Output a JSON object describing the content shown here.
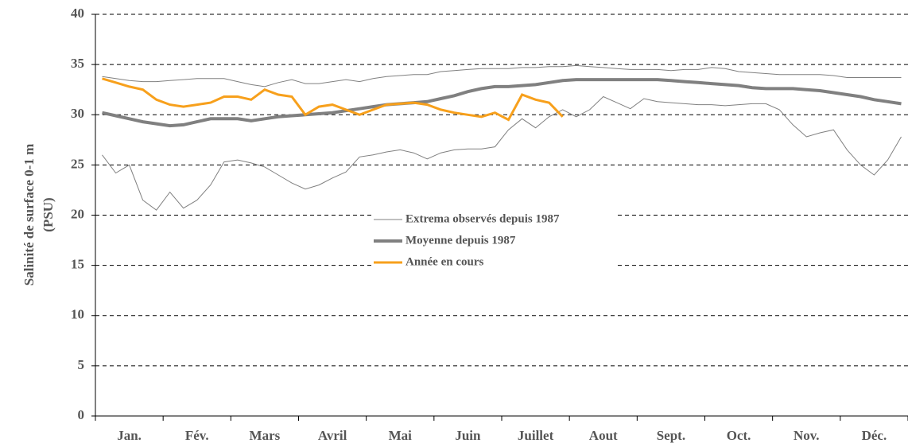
{
  "chart_data": {
    "type": "line",
    "y_label": [
      "Salinité de surface 0-1 m",
      "(PSU)"
    ],
    "categories": [
      null,
      null,
      "Jan.",
      null,
      null,
      null,
      null,
      "Fév.",
      null,
      null,
      null,
      null,
      "Mars",
      null,
      null,
      null,
      null,
      "Avril",
      null,
      null,
      null,
      null,
      "Mai",
      null,
      null,
      null,
      null,
      "Juin",
      null,
      null,
      null,
      null,
      "Juillet",
      null,
      null,
      null,
      null,
      "Aout",
      null,
      null,
      null,
      null,
      "Sept.",
      null,
      null,
      null,
      null,
      "Oct.",
      null,
      null,
      null,
      null,
      "Nov.",
      null,
      null,
      null,
      null,
      "Déc.",
      null,
      null
    ],
    "ylim": [
      0,
      40
    ],
    "yticks": [
      0,
      5,
      10,
      15,
      20,
      25,
      30,
      35,
      40
    ],
    "grid": true,
    "series": [
      {
        "name": "Extrema observés depuis 1987",
        "color": "#808080",
        "values": [
          33.8,
          33.6,
          33.4,
          33.3,
          33.3,
          33.4,
          33.5,
          33.6,
          33.6,
          33.6,
          33.3,
          33.0,
          32.8,
          33.2,
          33.5,
          33.1,
          33.1,
          33.3,
          33.5,
          33.3,
          33.6,
          33.8,
          33.9,
          34.0,
          34.0,
          34.3,
          34.4,
          34.5,
          34.6,
          34.6,
          34.6,
          34.7,
          34.7,
          34.8,
          34.8,
          34.9,
          34.8,
          34.7,
          34.6,
          34.5,
          34.5,
          34.5,
          34.4,
          34.5,
          34.5,
          34.7,
          34.6,
          34.3,
          34.2,
          34.1,
          34.0,
          34.0,
          34.0,
          34.0,
          33.9,
          33.7,
          33.7,
          33.7,
          33.7,
          33.7
        ],
        "low_values": [
          26.0,
          24.2,
          25.0,
          21.5,
          20.5,
          22.3,
          20.7,
          21.5,
          23.0,
          25.3,
          25.5,
          25.2,
          24.8,
          24.0,
          23.2,
          22.6,
          23.0,
          23.7,
          24.3,
          25.8,
          26.0,
          26.3,
          26.5,
          26.2,
          25.6,
          26.2,
          26.5,
          26.6,
          26.6,
          26.8,
          28.5,
          29.6,
          28.7,
          29.8,
          30.5,
          29.8,
          30.5,
          31.8,
          31.2,
          30.6,
          31.6,
          31.3,
          31.2,
          31.1,
          31.0,
          31.0,
          30.9,
          31.0,
          31.1,
          31.1,
          30.5,
          29.0,
          27.8,
          28.2,
          28.5,
          26.5,
          25.0,
          24.0,
          25.5,
          27.8
        ]
      },
      {
        "name": "Moyenne depuis 1987",
        "color": "#808080",
        "values": [
          30.2,
          29.9,
          29.6,
          29.3,
          29.1,
          28.9,
          29.0,
          29.3,
          29.6,
          29.6,
          29.6,
          29.4,
          29.6,
          29.8,
          29.9,
          30.0,
          30.1,
          30.2,
          30.4,
          30.6,
          30.8,
          31.0,
          31.1,
          31.2,
          31.3,
          31.6,
          31.9,
          32.3,
          32.6,
          32.8,
          32.8,
          32.9,
          33.0,
          33.2,
          33.4,
          33.5,
          33.5,
          33.5,
          33.5,
          33.5,
          33.5,
          33.5,
          33.4,
          33.3,
          33.2,
          33.1,
          33.0,
          32.9,
          32.7,
          32.6,
          32.6,
          32.6,
          32.5,
          32.4,
          32.2,
          32.0,
          31.8,
          31.5,
          31.3,
          31.1
        ]
      },
      {
        "name": "Année en cours",
        "color": "#f7a01c",
        "values": [
          33.6,
          33.2,
          32.8,
          32.5,
          31.5,
          31.0,
          30.8,
          31.0,
          31.2,
          31.8,
          31.8,
          31.5,
          32.5,
          32.0,
          31.8,
          30.0,
          30.8,
          31.0,
          30.5,
          30.0,
          30.5,
          31.0,
          31.1,
          31.2,
          31.0,
          30.5,
          30.2,
          30.0,
          29.8,
          30.2,
          29.5,
          32.0,
          31.5,
          31.2,
          29.8,
          null,
          null,
          null,
          null,
          null,
          null,
          null,
          null,
          null,
          null,
          null,
          null,
          null,
          null,
          null,
          null,
          null,
          null,
          null,
          null,
          null,
          null,
          null,
          null,
          null
        ]
      }
    ]
  }
}
